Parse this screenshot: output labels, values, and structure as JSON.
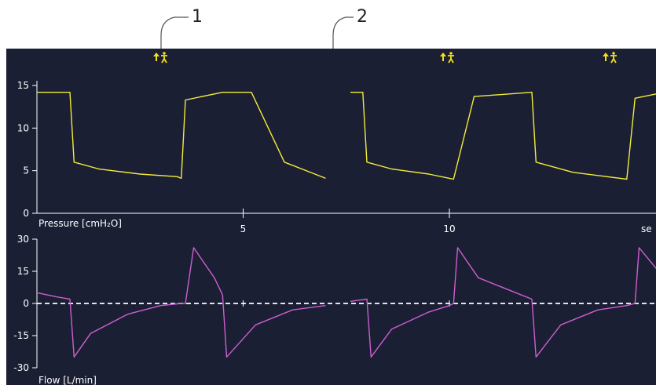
{
  "callouts": [
    {
      "label": "1"
    },
    {
      "label": "2"
    }
  ],
  "markers": {
    "icon": "patient-trigger-icon",
    "glyph": "↑🚶",
    "count": 3
  },
  "colors": {
    "screen_bg": "#1b1f33",
    "pressure_trace": "#f2ec3a",
    "flow_trace": "#cc5fcf",
    "axis": "#ffffff",
    "zero_line": "#ffffff",
    "marker": "#f5e11a",
    "callout": "#555555"
  },
  "pressure": {
    "label": "Pressure [cmH₂O]",
    "ylim": [
      0,
      15
    ],
    "yticks": [
      "0",
      "5",
      "10",
      "15"
    ],
    "xticks": [
      "5",
      "10",
      "se"
    ]
  },
  "flow": {
    "label": "Flow [L/min]",
    "ylim": [
      -30,
      30
    ],
    "yticks": [
      "-30",
      "-15",
      "0",
      "15",
      "30"
    ],
    "zero_line": "dashed"
  },
  "chart_data": [
    {
      "type": "line",
      "ylabel": "Pressure [cmH₂O]",
      "xlabel": "",
      "xlim": [
        0,
        15.5
      ],
      "ylim": [
        0,
        15
      ],
      "grid": false,
      "series": [
        {
          "x": [
            0,
            0.8,
            0.9,
            1.5,
            2.5,
            3.4,
            3.5,
            3.6,
            4.5,
            5.2,
            6.0,
            7.0
          ],
          "values": [
            14.2,
            14.2,
            6.0,
            5.2,
            4.6,
            4.3,
            4.1,
            13.3,
            14.2,
            14.2,
            6.0,
            4.1
          ]
        },
        {
          "x": [
            7.6,
            7.9,
            8.0,
            8.6,
            9.5,
            10.0,
            10.1,
            10.6,
            12.0,
            12.1,
            13.0,
            14.3,
            14.5,
            15.0,
            15.5
          ],
          "values": [
            14.2,
            14.2,
            6.0,
            5.2,
            4.6,
            4.1,
            4.0,
            13.7,
            14.2,
            6.0,
            4.8,
            4.0,
            13.5,
            14.0,
            14.2
          ]
        }
      ]
    },
    {
      "type": "line",
      "ylabel": "Flow [L/min]",
      "xlabel": "",
      "xlim": [
        0,
        15.5
      ],
      "ylim": [
        -30,
        30
      ],
      "grid": false,
      "series": [
        {
          "x": [
            0,
            0.5,
            0.8,
            0.9,
            1.3,
            2.2,
            3.0,
            3.5,
            3.6,
            3.8,
            4.3,
            4.5,
            4.6,
            5.3,
            6.2,
            7.0
          ],
          "values": [
            5,
            3,
            2,
            -25,
            -14,
            -5,
            -1,
            0,
            0,
            26,
            12,
            4,
            -25,
            -10,
            -3,
            -1
          ]
        },
        {
          "x": [
            7.6,
            8.0,
            8.1,
            8.6,
            9.5,
            10.0,
            10.1,
            10.2,
            10.7,
            12.0,
            12.1,
            12.7,
            13.6,
            14.3,
            14.5,
            14.6,
            15.5
          ],
          "values": [
            1,
            2,
            -25,
            -12,
            -4,
            -1,
            0,
            26,
            12,
            2,
            -25,
            -10,
            -3,
            -1,
            0,
            26,
            5
          ]
        }
      ]
    }
  ]
}
